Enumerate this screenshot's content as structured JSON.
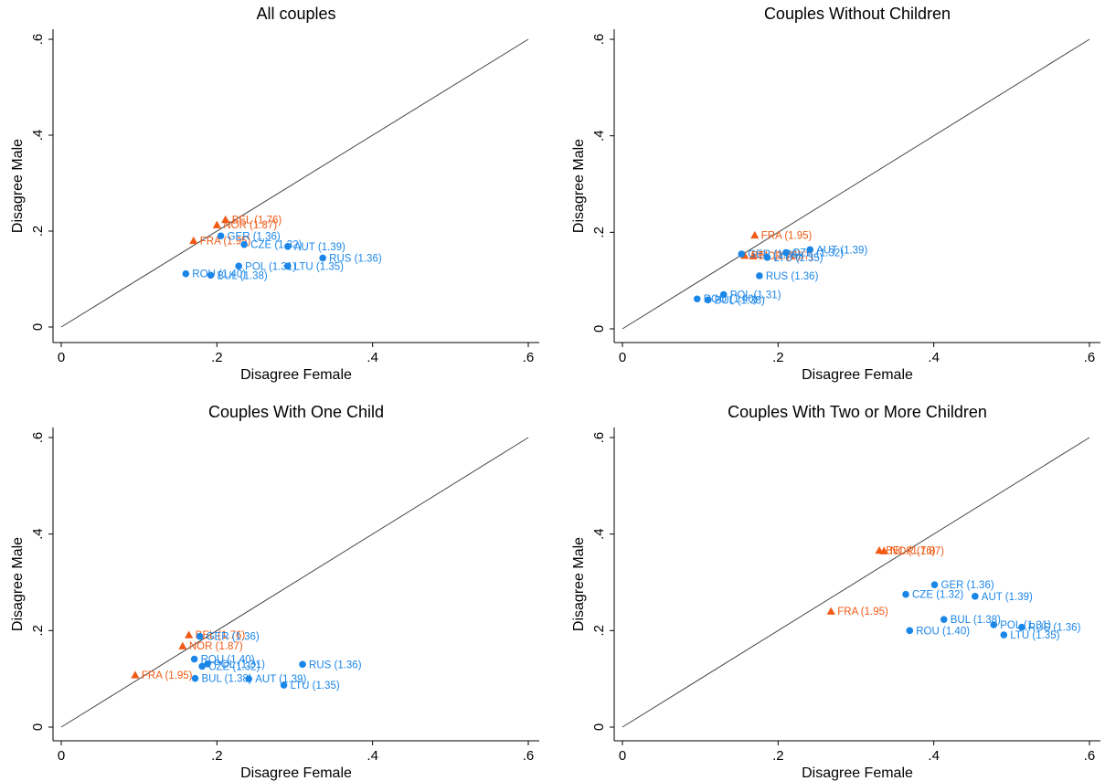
{
  "colors": {
    "blue": "#1a86e8",
    "orange": "#f05a14",
    "diagonal": "#444444"
  },
  "chart_data": [
    {
      "type": "scatter",
      "title": "All couples",
      "xlabel": "Disagree Female",
      "ylabel": "Disagree Male",
      "xlim": [
        0,
        0.6
      ],
      "ylim": [
        0,
        0.6
      ],
      "xticks": [
        ".6",
        ".4",
        ".2",
        "0"
      ],
      "yticks": [
        ".6",
        ".4",
        ".2",
        "0"
      ],
      "reference_line": "45-degree",
      "grid": false,
      "points": [
        {
          "label": "BEL (1.76)",
          "x": 0.211,
          "y": 0.224,
          "marker": "triangle",
          "color": "orange"
        },
        {
          "label": "NOR (1.87)",
          "x": 0.2,
          "y": 0.213,
          "marker": "triangle",
          "color": "orange"
        },
        {
          "label": "FRA (1.95)",
          "x": 0.17,
          "y": 0.18,
          "marker": "triangle",
          "color": "orange"
        },
        {
          "label": "GER (1.36)",
          "x": 0.205,
          "y": 0.19,
          "marker": "circle",
          "color": "blue"
        },
        {
          "label": "CZE (1.32)",
          "x": 0.235,
          "y": 0.172,
          "marker": "circle",
          "color": "blue"
        },
        {
          "label": "AUT (1.39)",
          "x": 0.291,
          "y": 0.168,
          "marker": "circle",
          "color": "blue"
        },
        {
          "label": "RUS (1.36)",
          "x": 0.336,
          "y": 0.144,
          "marker": "circle",
          "color": "blue"
        },
        {
          "label": "POL (1.31)",
          "x": 0.228,
          "y": 0.127,
          "marker": "circle",
          "color": "blue"
        },
        {
          "label": "LTU (1.35)",
          "x": 0.291,
          "y": 0.127,
          "marker": "circle",
          "color": "blue"
        },
        {
          "label": "ROU (1.40)",
          "x": 0.16,
          "y": 0.111,
          "marker": "circle",
          "color": "blue"
        },
        {
          "label": "BUL (1.38)",
          "x": 0.192,
          "y": 0.108,
          "marker": "circle",
          "color": "blue"
        }
      ]
    },
    {
      "type": "scatter",
      "title": "Couples Without Children",
      "xlabel": "Disagree Female",
      "ylabel": "Disagree Male",
      "xlim": [
        0,
        0.6
      ],
      "ylim": [
        0,
        0.6
      ],
      "xticks": [
        ".6",
        ".4",
        ".2",
        "0"
      ],
      "yticks": [
        ".6",
        ".4",
        ".2",
        "0"
      ],
      "reference_line": "45-degree",
      "grid": false,
      "points": [
        {
          "label": "FRA (1.95)",
          "x": 0.17,
          "y": 0.194,
          "marker": "triangle",
          "color": "orange"
        },
        {
          "label": "BEL (1.76)",
          "x": 0.157,
          "y": 0.152,
          "marker": "triangle",
          "color": "orange"
        },
        {
          "label": "NOR (1.87)",
          "x": 0.168,
          "y": 0.151,
          "marker": "triangle",
          "color": "orange"
        },
        {
          "label": "GER (1.36)",
          "x": 0.153,
          "y": 0.155,
          "marker": "circle",
          "color": "blue"
        },
        {
          "label": "AUT (1.39)",
          "x": 0.241,
          "y": 0.164,
          "marker": "circle",
          "color": "blue"
        },
        {
          "label": "CZE (1.32)",
          "x": 0.21,
          "y": 0.158,
          "marker": "circle",
          "color": "blue"
        },
        {
          "label": "LTU (1.35)",
          "x": 0.186,
          "y": 0.148,
          "marker": "circle",
          "color": "blue"
        },
        {
          "label": "RUS (1.36)",
          "x": 0.176,
          "y": 0.11,
          "marker": "circle",
          "color": "blue"
        },
        {
          "label": "POL (1.31)",
          "x": 0.13,
          "y": 0.071,
          "marker": "circle",
          "color": "blue"
        },
        {
          "label": "ROU (1.40)",
          "x": 0.096,
          "y": 0.062,
          "marker": "circle",
          "color": "blue"
        },
        {
          "label": "BUL (1.38)",
          "x": 0.11,
          "y": 0.06,
          "marker": "circle",
          "color": "blue"
        }
      ]
    },
    {
      "type": "scatter",
      "title": "Couples With One Child",
      "xlabel": "Disagree Female",
      "ylabel": "Disagree Male",
      "xlim": [
        0,
        0.6
      ],
      "ylim": [
        0,
        0.6
      ],
      "xticks": [
        ".6",
        ".4",
        ".2",
        "0"
      ],
      "yticks": [
        ".6",
        ".4",
        ".2",
        "0"
      ],
      "reference_line": "45-degree",
      "grid": false,
      "points": [
        {
          "label": "BEL (1.76)",
          "x": 0.164,
          "y": 0.191,
          "marker": "triangle",
          "color": "orange"
        },
        {
          "label": "NOR (1.87)",
          "x": 0.156,
          "y": 0.168,
          "marker": "triangle",
          "color": "orange"
        },
        {
          "label": "FRA (1.95)",
          "x": 0.095,
          "y": 0.108,
          "marker": "triangle",
          "color": "orange"
        },
        {
          "label": "GER (1.36)",
          "x": 0.178,
          "y": 0.188,
          "marker": "circle",
          "color": "blue"
        },
        {
          "label": "ROU (1.40)",
          "x": 0.171,
          "y": 0.141,
          "marker": "circle",
          "color": "blue"
        },
        {
          "label": "POL (1.31)",
          "x": 0.188,
          "y": 0.131,
          "marker": "circle",
          "color": "blue"
        },
        {
          "label": "CZE (1.32)",
          "x": 0.181,
          "y": 0.126,
          "marker": "circle",
          "color": "blue"
        },
        {
          "label": "RUS (1.36)",
          "x": 0.31,
          "y": 0.13,
          "marker": "circle",
          "color": "blue"
        },
        {
          "label": "BUL (1.38)",
          "x": 0.172,
          "y": 0.101,
          "marker": "circle",
          "color": "blue"
        },
        {
          "label": "AUT (1.39)",
          "x": 0.241,
          "y": 0.1,
          "marker": "circle",
          "color": "blue"
        },
        {
          "label": "LTU (1.35)",
          "x": 0.286,
          "y": 0.087,
          "marker": "circle",
          "color": "blue"
        }
      ]
    },
    {
      "type": "scatter",
      "title": "Couples With Two or More Children",
      "xlabel": "Disagree Female",
      "ylabel": "Disagree Male",
      "xlim": [
        0,
        0.6
      ],
      "ylim": [
        0,
        0.6
      ],
      "xticks": [
        ".6",
        ".4",
        ".2",
        "0"
      ],
      "yticks": [
        ".6",
        ".4",
        ".2",
        "0"
      ],
      "reference_line": "45-degree",
      "grid": false,
      "points": [
        {
          "label": "BEL (1.76)",
          "x": 0.33,
          "y": 0.366,
          "marker": "triangle",
          "color": "orange"
        },
        {
          "label": "NOR (1.87)",
          "x": 0.336,
          "y": 0.365,
          "marker": "triangle",
          "color": "orange"
        },
        {
          "label": "FRA (1.95)",
          "x": 0.268,
          "y": 0.24,
          "marker": "triangle",
          "color": "orange"
        },
        {
          "label": "GER (1.36)",
          "x": 0.401,
          "y": 0.295,
          "marker": "circle",
          "color": "blue"
        },
        {
          "label": "CZE (1.32)",
          "x": 0.364,
          "y": 0.275,
          "marker": "circle",
          "color": "blue"
        },
        {
          "label": "AUT (1.39)",
          "x": 0.453,
          "y": 0.271,
          "marker": "circle",
          "color": "blue"
        },
        {
          "label": "BUL (1.38)",
          "x": 0.413,
          "y": 0.223,
          "marker": "circle",
          "color": "blue"
        },
        {
          "label": "POL (1.31)",
          "x": 0.477,
          "y": 0.212,
          "marker": "circle",
          "color": "blue"
        },
        {
          "label": "RUS (1.36)",
          "x": 0.513,
          "y": 0.207,
          "marker": "circle",
          "color": "blue"
        },
        {
          "label": "ROU (1.40)",
          "x": 0.369,
          "y": 0.2,
          "marker": "circle",
          "color": "blue"
        },
        {
          "label": "LTU (1.35)",
          "x": 0.49,
          "y": 0.191,
          "marker": "circle",
          "color": "blue"
        }
      ]
    }
  ]
}
